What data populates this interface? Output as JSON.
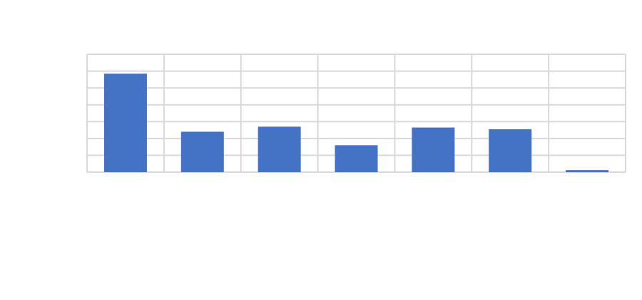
{
  "chart_data": {
    "type": "bar",
    "categories": [
      "",
      "",
      "",
      "",
      "",
      "",
      ""
    ],
    "values": [
      5.85,
      2.4,
      2.7,
      1.6,
      2.65,
      2.55,
      0.12
    ],
    "data_labels": [
      "",
      "",
      "",
      "",
      "",
      "",
      ""
    ],
    "title": "",
    "xlabel": "",
    "ylabel": "",
    "ylim": [
      0,
      7
    ],
    "grid": true,
    "bar_color": "#4472c4",
    "grid_color": "#d9d9d9"
  }
}
